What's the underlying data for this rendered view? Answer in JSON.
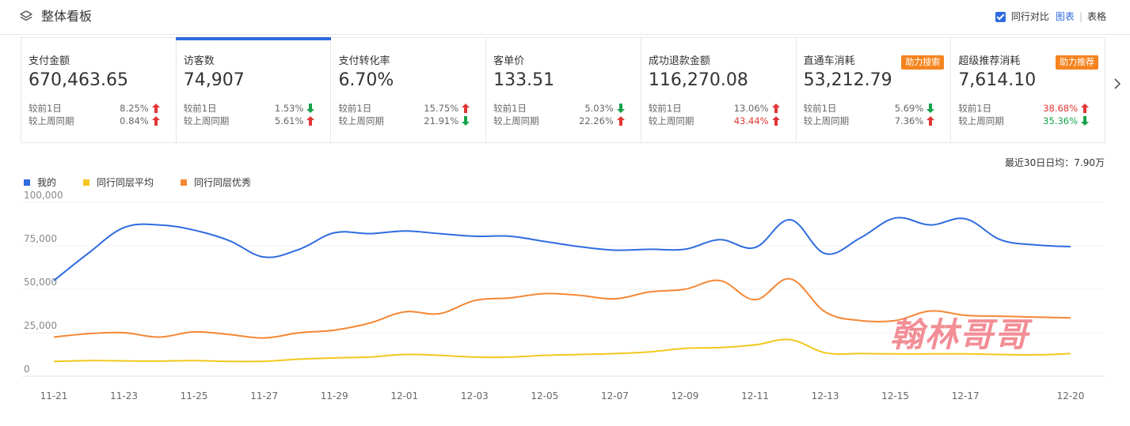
{
  "header": {
    "title": "整体看板",
    "compare_label": "同行对比",
    "view_chart": "图表",
    "view_table": "表格"
  },
  "cards": [
    {
      "label": "支付金额",
      "value": "670,463.65",
      "badge": "",
      "rows": [
        {
          "name": "较前1日",
          "pct": "8.25%",
          "dir": "up"
        },
        {
          "name": "较上周同期",
          "pct": "0.84%",
          "dir": "up"
        }
      ]
    },
    {
      "label": "访客数",
      "value": "74,907",
      "badge": "",
      "rows": [
        {
          "name": "较前1日",
          "pct": "1.53%",
          "dir": "down"
        },
        {
          "name": "较上周同期",
          "pct": "5.61%",
          "dir": "up"
        }
      ]
    },
    {
      "label": "支付转化率",
      "value": "6.70%",
      "badge": "",
      "rows": [
        {
          "name": "较前1日",
          "pct": "15.75%",
          "dir": "up"
        },
        {
          "name": "较上周同期",
          "pct": "21.91%",
          "dir": "down"
        }
      ]
    },
    {
      "label": "客单价",
      "value": "133.51",
      "badge": "",
      "rows": [
        {
          "name": "较前1日",
          "pct": "5.03%",
          "dir": "down"
        },
        {
          "name": "较上周同期",
          "pct": "22.26%",
          "dir": "up"
        }
      ]
    },
    {
      "label": "成功退款金额",
      "value": "116,270.08",
      "badge": "",
      "rows": [
        {
          "name": "较前1日",
          "pct": "13.06%",
          "dir": "up"
        },
        {
          "name": "较上周同期",
          "pct": "43.44%",
          "dir": "up",
          "color": "red"
        }
      ]
    },
    {
      "label": "直通车消耗",
      "value": "53,212.79",
      "badge": "助力搜索",
      "rows": [
        {
          "name": "较前1日",
          "pct": "5.69%",
          "dir": "down"
        },
        {
          "name": "较上周同期",
          "pct": "7.36%",
          "dir": "up"
        }
      ]
    },
    {
      "label": "超级推荐消耗",
      "value": "7,614.10",
      "badge": "助力推荐",
      "rows": [
        {
          "name": "较前1日",
          "pct": "38.68%",
          "dir": "up",
          "color": "red"
        },
        {
          "name": "较上周同期",
          "pct": "35.36%",
          "dir": "down",
          "color": "green"
        }
      ]
    }
  ],
  "average_label": "最近30日日均：7.90万",
  "watermark": "翰林哥哥",
  "colors": {
    "accent": "#2f6be0",
    "up": "#e23636",
    "down": "#16a34a",
    "badge": "#f5841f",
    "mine": "#2f6be0",
    "avg": "#f2c81e",
    "excellent": "#f58735"
  },
  "chart_data": {
    "type": "line",
    "x": [
      "11-21",
      "11-22",
      "11-23",
      "11-24",
      "11-25",
      "11-26",
      "11-27",
      "11-28",
      "11-29",
      "11-30",
      "12-01",
      "12-02",
      "12-03",
      "12-04",
      "12-05",
      "12-06",
      "12-07",
      "12-08",
      "12-09",
      "12-10",
      "12-11",
      "12-12",
      "12-13",
      "12-14",
      "12-15",
      "12-16",
      "12-17",
      "12-18",
      "12-19",
      "12-20"
    ],
    "x_tick_labels": [
      "11-21",
      "11-23",
      "11-25",
      "11-27",
      "11-29",
      "12-01",
      "12-03",
      "12-05",
      "12-07",
      "12-09",
      "12-11",
      "12-13",
      "12-15",
      "12-17",
      "12-20"
    ],
    "y_tick_labels": [
      "0",
      "25,000",
      "50,000",
      "75,000",
      "100,000"
    ],
    "ylim": [
      0,
      100000
    ],
    "series": [
      {
        "name": "我的",
        "color": "#2f6be0",
        "values": [
          55000,
          71000,
          85500,
          87000,
          84000,
          78000,
          68500,
          73000,
          82500,
          82000,
          83500,
          82000,
          80500,
          80500,
          77500,
          74500,
          72500,
          73000,
          73000,
          78500,
          74000,
          90000,
          70500,
          79500,
          91000,
          87000,
          90500,
          78500,
          75500,
          74500
        ]
      },
      {
        "name": "同行同层平均",
        "color": "#f2c81e",
        "values": [
          8500,
          9000,
          8800,
          8700,
          9000,
          8500,
          8600,
          9800,
          10500,
          11000,
          12500,
          12000,
          11000,
          11000,
          12000,
          12500,
          13000,
          14000,
          16000,
          16500,
          18000,
          21000,
          13500,
          13000,
          12800,
          12800,
          12800,
          12500,
          12300,
          13000
        ]
      },
      {
        "name": "同行同层优秀",
        "color": "#f58735",
        "values": [
          22500,
          24500,
          25000,
          22500,
          25500,
          24000,
          22000,
          25000,
          26500,
          30500,
          37000,
          36000,
          43500,
          45000,
          47500,
          46500,
          44500,
          48500,
          50000,
          55000,
          44000,
          56000,
          37000,
          32000,
          32000,
          37500,
          35000,
          34500,
          34000,
          33500
        ]
      }
    ]
  }
}
